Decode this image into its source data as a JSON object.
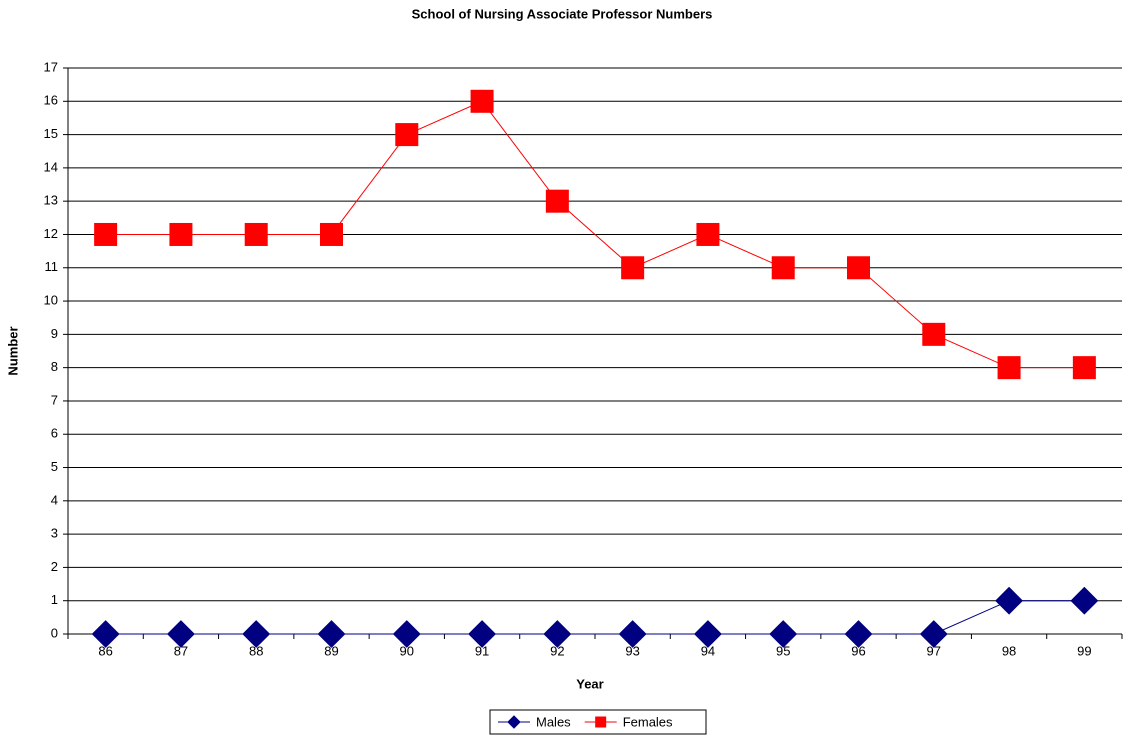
{
  "chart_data": {
    "type": "line",
    "title": "School of Nursing Associate Professor Numbers",
    "x_label": "Year",
    "y_label": "Number",
    "categories": [
      "86",
      "87",
      "88",
      "89",
      "90",
      "91",
      "92",
      "93",
      "94",
      "95",
      "96",
      "97",
      "98",
      "99"
    ],
    "series": [
      {
        "name": "Males",
        "color": "#000080",
        "marker": "diamond",
        "values": [
          0,
          0,
          0,
          0,
          0,
          0,
          0,
          0,
          0,
          0,
          0,
          0,
          1,
          1
        ]
      },
      {
        "name": "Females",
        "color": "#ff0000",
        "marker": "square",
        "values": [
          12,
          12,
          12,
          12,
          15,
          16,
          13,
          11,
          12,
          11,
          11,
          9,
          8,
          8
        ]
      }
    ],
    "ylim": [
      0,
      17
    ],
    "yticks": [
      0,
      1,
      2,
      3,
      4,
      5,
      6,
      7,
      8,
      9,
      10,
      11,
      12,
      13,
      14,
      15,
      16,
      17
    ],
    "grid": true,
    "legend": "bottom"
  }
}
